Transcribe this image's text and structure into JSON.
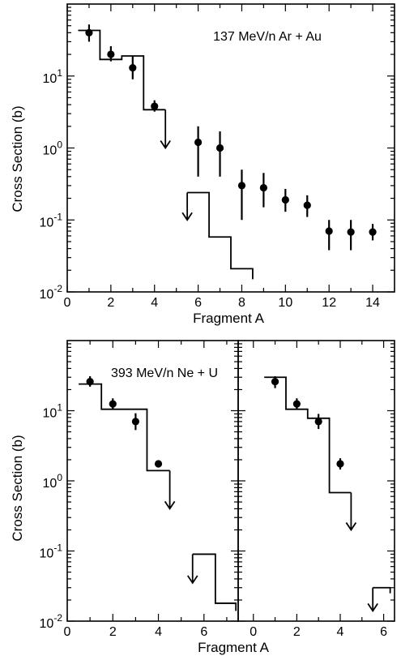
{
  "figure": {
    "ylabel": "Cross Section (b)",
    "xlabel": "Fragment A"
  },
  "chart_data": [
    {
      "id": "top",
      "type": "scatter",
      "title": "137 MeV/n  Ar + Au",
      "xlabel": "Fragment A",
      "ylabel": "Cross Section (b)",
      "xlim": [
        0,
        15
      ],
      "ylim": [
        0.01,
        100
      ],
      "yscale": "log",
      "x_ticks": [
        0,
        2,
        4,
        6,
        8,
        10,
        12,
        14
      ],
      "y_tick_labels": [
        {
          "value": 0.01,
          "base": "10",
          "exp": "-2"
        },
        {
          "value": 0.1,
          "base": "10",
          "exp": "-1"
        },
        {
          "value": 1,
          "base": "10",
          "exp": "0"
        },
        {
          "value": 10,
          "base": "10",
          "exp": "1"
        }
      ],
      "series": [
        {
          "kind": "points",
          "points": [
            {
              "x": 1,
              "y": 40,
              "lo": 30,
              "hi": 52
            },
            {
              "x": 2,
              "y": 20,
              "lo": 16,
              "hi": 26
            },
            {
              "x": 3,
              "y": 13,
              "lo": 9,
              "hi": 19
            },
            {
              "x": 4,
              "y": 3.8,
              "lo": 3.2,
              "hi": 4.6
            },
            {
              "x": 6,
              "y": 1.2,
              "lo": 0.4,
              "hi": 2.0
            },
            {
              "x": 7,
              "y": 1.0,
              "lo": 0.4,
              "hi": 1.7
            },
            {
              "x": 8,
              "y": 0.3,
              "lo": 0.1,
              "hi": 0.5
            },
            {
              "x": 9,
              "y": 0.28,
              "lo": 0.15,
              "hi": 0.45
            },
            {
              "x": 10,
              "y": 0.19,
              "lo": 0.13,
              "hi": 0.27
            },
            {
              "x": 11,
              "y": 0.16,
              "lo": 0.11,
              "hi": 0.22
            },
            {
              "x": 12,
              "y": 0.07,
              "lo": 0.038,
              "hi": 0.1
            },
            {
              "x": 13,
              "y": 0.068,
              "lo": 0.038,
              "hi": 0.1
            },
            {
              "x": 14,
              "y": 0.068,
              "lo": 0.052,
              "hi": 0.088
            }
          ]
        },
        {
          "kind": "histogram",
          "bins": [
            {
              "x0": 0.5,
              "x1": 1.5,
              "y": 43
            },
            {
              "x0": 1.5,
              "x1": 2.5,
              "y": 17
            },
            {
              "x0": 2.5,
              "x1": 3.5,
              "y": 19
            },
            {
              "x0": 3.5,
              "x1": 4.5,
              "y": 3.4
            }
          ],
          "limit_arrow": {
            "x": 4.5,
            "from": 3.4,
            "to": 1.0
          }
        },
        {
          "kind": "histogram",
          "bins": [
            {
              "x0": 5.5,
              "x1": 6.5,
              "y": 0.24
            },
            {
              "x0": 6.5,
              "x1": 7.5,
              "y": 0.058
            },
            {
              "x0": 7.5,
              "x1": 8.5,
              "y": 0.021
            }
          ],
          "limit_arrow": {
            "x": 5.5,
            "from": 0.24,
            "to": 0.1
          },
          "end_to": 0.015
        }
      ]
    },
    {
      "id": "bottom-left",
      "type": "scatter",
      "title": "393 MeV/n  Ne + U",
      "xlabel": "Fragment A",
      "ylabel": "Cross Section (b)",
      "xlim": [
        0,
        7.5
      ],
      "ylim": [
        0.01,
        100
      ],
      "yscale": "log",
      "x_ticks": [
        0,
        2,
        4,
        6
      ],
      "y_tick_labels": [
        {
          "value": 0.01,
          "base": "10",
          "exp": "-2"
        },
        {
          "value": 0.1,
          "base": "10",
          "exp": "-1"
        },
        {
          "value": 1,
          "base": "10",
          "exp": "0"
        },
        {
          "value": 10,
          "base": "10",
          "exp": "1"
        }
      ],
      "series": [
        {
          "kind": "points",
          "points": [
            {
              "x": 1,
              "y": 26,
              "lo": 22,
              "hi": 31
            },
            {
              "x": 2,
              "y": 12.5,
              "lo": 10.5,
              "hi": 15
            },
            {
              "x": 3,
              "y": 7,
              "lo": 5.3,
              "hi": 9.2
            },
            {
              "x": 4,
              "y": 1.75,
              "lo": 1.6,
              "hi": 1.9
            }
          ]
        },
        {
          "kind": "histogram",
          "bins": [
            {
              "x0": 0.5,
              "x1": 1.5,
              "y": 24
            },
            {
              "x0": 1.5,
              "x1": 3.5,
              "y": 10.5
            },
            {
              "x0": 3.5,
              "x1": 4.5,
              "y": 1.4
            }
          ],
          "limit_arrow": {
            "x": 4.5,
            "from": 1.4,
            "to": 0.4
          }
        },
        {
          "kind": "histogram",
          "bins": [
            {
              "x0": 5.5,
              "x1": 6.5,
              "y": 0.09
            },
            {
              "x0": 6.5,
              "x1": 7.4,
              "y": 0.018
            }
          ],
          "limit_arrow": {
            "x": 5.5,
            "from": 0.09,
            "to": 0.035
          },
          "end_to": 0.014
        }
      ]
    },
    {
      "id": "bottom-right",
      "type": "scatter",
      "title": "",
      "xlabel": "Fragment A",
      "ylabel": "",
      "xlim": [
        -0.7,
        6.5
      ],
      "ylim": [
        0.01,
        100
      ],
      "yscale": "log",
      "x_ticks": [
        0,
        2,
        4,
        6
      ],
      "y_tick_labels": [],
      "series": [
        {
          "kind": "points",
          "points": [
            {
              "x": 1,
              "y": 26,
              "lo": 21,
              "hi": 31
            },
            {
              "x": 2,
              "y": 12.5,
              "lo": 10.5,
              "hi": 15
            },
            {
              "x": 3,
              "y": 7,
              "lo": 5.5,
              "hi": 9
            },
            {
              "x": 4,
              "y": 1.75,
              "lo": 1.45,
              "hi": 2.1
            }
          ]
        },
        {
          "kind": "histogram",
          "bins": [
            {
              "x0": 0.5,
              "x1": 1.5,
              "y": 30
            },
            {
              "x0": 1.5,
              "x1": 2.5,
              "y": 10.5
            },
            {
              "x0": 2.5,
              "x1": 3.5,
              "y": 7.8
            },
            {
              "x0": 3.5,
              "x1": 4.5,
              "y": 0.68
            }
          ],
          "limit_arrow": {
            "x": 4.5,
            "from": 0.68,
            "to": 0.2
          }
        },
        {
          "kind": "histogram",
          "bins": [
            {
              "x0": 5.5,
              "x1": 6.3,
              "y": 0.03
            }
          ],
          "limit_arrow": {
            "x": 5.5,
            "from": 0.03,
            "to": 0.014
          },
          "end_to": 0.025
        }
      ]
    }
  ]
}
